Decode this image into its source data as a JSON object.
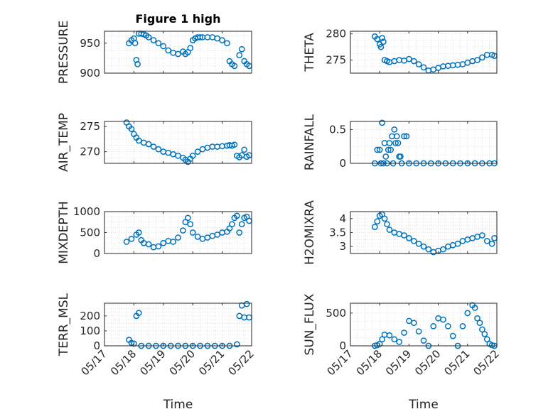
{
  "figure": {
    "title": "Figure 1 high",
    "marker_color": "#0072BD",
    "axis_color": "#262626",
    "grid_color": "#d9d9d9",
    "date_ticks": [
      "05/17",
      "05/18",
      "05/19",
      "05/20",
      "05/21",
      "05/22"
    ],
    "xlabel": "Time"
  },
  "chart_data": [
    {
      "id": "pressure",
      "type": "scatter",
      "ylabel": "PRESSURE",
      "title": "Figure 1 high",
      "xlim": [
        "05/17",
        "05/22"
      ],
      "ylim": [
        900,
        970
      ],
      "yticks": [
        "900",
        "950"
      ],
      "ytick_values": [
        900,
        950
      ],
      "grid": true,
      "x": [
        "05/17 20:00",
        "05/17 22:00",
        "05/18 00:00",
        "05/18 01:00",
        "05/18 02:00",
        "05/18 03:00",
        "05/18 04:00",
        "05/18 06:00",
        "05/18 08:00",
        "05/18 10:00",
        "05/18 12:00",
        "05/18 16:00",
        "05/18 20:00",
        "05/19 00:00",
        "05/19 04:00",
        "05/19 08:00",
        "05/19 12:00",
        "05/19 16:00",
        "05/19 18:00",
        "05/19 20:00",
        "05/19 22:00",
        "05/20 00:00",
        "05/20 02:00",
        "05/20 04:00",
        "05/20 06:00",
        "05/20 08:00",
        "05/20 12:00",
        "05/20 16:00",
        "05/20 20:00",
        "05/21 00:00",
        "05/21 04:00",
        "05/21 06:00",
        "05/21 08:00",
        "05/21 10:00",
        "05/21 14:00",
        "05/21 16:00",
        "05/21 18:00",
        "05/21 20:00",
        "05/21 22:00"
      ],
      "y": [
        950,
        955,
        958,
        950,
        922,
        915,
        966,
        966,
        965,
        963,
        960,
        955,
        950,
        945,
        938,
        934,
        932,
        936,
        932,
        935,
        942,
        955,
        958,
        960,
        960,
        960,
        960,
        960,
        958,
        955,
        950,
        920,
        915,
        912,
        930,
        940,
        920,
        915,
        912
      ]
    },
    {
      "id": "theta",
      "type": "scatter",
      "ylabel": "THETA",
      "xlim": [
        "05/17",
        "05/22"
      ],
      "ylim": [
        272.5,
        280.5
      ],
      "yticks": [
        "275",
        "280"
      ],
      "ytick_values": [
        275,
        280
      ],
      "grid": true,
      "x": [
        "05/17 20:00",
        "05/17 22:00",
        "05/18 00:00",
        "05/18 01:00",
        "05/18 02:00",
        "05/18 03:00",
        "05/18 04:00",
        "05/18 06:00",
        "05/18 08:00",
        "05/18 12:00",
        "05/18 16:00",
        "05/18 20:00",
        "05/19 00:00",
        "05/19 04:00",
        "05/19 08:00",
        "05/19 12:00",
        "05/19 16:00",
        "05/19 20:00",
        "05/20 00:00",
        "05/20 04:00",
        "05/20 08:00",
        "05/20 12:00",
        "05/20 16:00",
        "05/20 20:00",
        "05/21 00:00",
        "05/21 04:00",
        "05/21 08:00",
        "05/21 12:00",
        "05/21 16:00",
        "05/21 20:00",
        "05/21 22:00"
      ],
      "y": [
        279.5,
        279,
        278,
        277.5,
        279.2,
        278.5,
        275,
        274.8,
        274.6,
        274.8,
        275,
        274.9,
        275.2,
        274.8,
        274.2,
        273.6,
        273,
        273.2,
        273.5,
        273.8,
        273.9,
        274,
        274.1,
        274.2,
        274.5,
        274.8,
        275,
        275.5,
        276,
        276,
        275.8
      ]
    },
    {
      "id": "air_temp",
      "type": "scatter",
      "ylabel": "AIR_TEMP",
      "xlim": [
        "05/17",
        "05/22"
      ],
      "ylim": [
        267.7,
        276
      ],
      "yticks": [
        "270",
        "275"
      ],
      "ytick_values": [
        270,
        275
      ],
      "grid": true,
      "x": [
        "05/17 18:00",
        "05/17 20:00",
        "05/17 22:00",
        "05/18 00:00",
        "05/18 02:00",
        "05/18 04:00",
        "05/18 08:00",
        "05/18 12:00",
        "05/18 16:00",
        "05/18 20:00",
        "05/19 00:00",
        "05/19 04:00",
        "05/19 08:00",
        "05/19 12:00",
        "05/19 16:00",
        "05/19 18:00",
        "05/19 20:00",
        "05/19 22:00",
        "05/20 00:00",
        "05/20 04:00",
        "05/20 08:00",
        "05/20 12:00",
        "05/20 16:00",
        "05/20 20:00",
        "05/21 00:00",
        "05/21 04:00",
        "05/21 06:00",
        "05/21 08:00",
        "05/21 10:00",
        "05/21 12:00",
        "05/21 14:00",
        "05/21 16:00",
        "05/21 18:00",
        "05/21 20:00",
        "05/21 22:00"
      ],
      "y": [
        275.8,
        275,
        274.5,
        273.5,
        272.8,
        272.2,
        271.8,
        271.5,
        271,
        270.5,
        270,
        269.8,
        269.5,
        269.2,
        268.8,
        268.4,
        268,
        268.6,
        269.2,
        270,
        270.5,
        270.8,
        271,
        271,
        271.1,
        271.2,
        271.3,
        271.2,
        271.4,
        269.2,
        268.9,
        269.3,
        270.4,
        269,
        269.3
      ]
    },
    {
      "id": "rainfall",
      "type": "scatter",
      "ylabel": "RAINFALL",
      "xlim": [
        "05/17",
        "05/22"
      ],
      "ylim": [
        0,
        0.62
      ],
      "yticks": [
        "0",
        "0.5"
      ],
      "ytick_values": [
        0,
        0.5
      ],
      "grid": true,
      "x": [
        "05/17 20:00",
        "05/17 22:00",
        "05/18 00:00",
        "05/18 01:00",
        "05/18 02:00",
        "05/18 03:00",
        "05/18 04:00",
        "05/18 05:00",
        "05/18 06:00",
        "05/18 07:00",
        "05/18 08:00",
        "05/18 09:00",
        "05/18 10:00",
        "05/18 11:00",
        "05/18 12:00",
        "05/18 13:00",
        "05/18 14:00",
        "05/18 15:00",
        "05/18 16:00",
        "05/18 17:00",
        "05/18 18:00",
        "05/18 20:00",
        "05/18 22:00",
        "05/19 00:00",
        "05/19 06:00",
        "05/19 12:00",
        "05/19 18:00",
        "05/20 00:00",
        "05/20 06:00",
        "05/20 12:00",
        "05/20 18:00",
        "05/21 00:00",
        "05/21 06:00",
        "05/21 12:00",
        "05/21 18:00",
        "05/21 22:00"
      ],
      "y": [
        0,
        0.2,
        0.2,
        0,
        0.6,
        0,
        0.3,
        0.1,
        0,
        0.2,
        0.3,
        0.2,
        0.4,
        0,
        0.5,
        0.3,
        0.4,
        0.3,
        0.1,
        0.1,
        0,
        0.4,
        0.4,
        0,
        0,
        0,
        0,
        0,
        0,
        0,
        0,
        0,
        0,
        0,
        0,
        0
      ]
    },
    {
      "id": "mixdepth",
      "type": "scatter",
      "ylabel": "MIXDEPTH",
      "xlim": [
        "05/17",
        "05/22"
      ],
      "ylim": [
        0,
        1000
      ],
      "yticks": [
        "0",
        "500",
        "1000"
      ],
      "ytick_values": [
        0,
        500,
        1000
      ],
      "grid": true,
      "x": [
        "05/17 18:00",
        "05/17 22:00",
        "05/18 02:00",
        "05/18 04:00",
        "05/18 06:00",
        "05/18 08:00",
        "05/18 12:00",
        "05/18 16:00",
        "05/18 20:00",
        "05/19 00:00",
        "05/19 04:00",
        "05/19 08:00",
        "05/19 12:00",
        "05/19 16:00",
        "05/19 18:00",
        "05/19 20:00",
        "05/19 22:00",
        "05/20 00:00",
        "05/20 04:00",
        "05/20 08:00",
        "05/20 12:00",
        "05/20 16:00",
        "05/20 20:00",
        "05/21 00:00",
        "05/21 04:00",
        "05/21 06:00",
        "05/21 08:00",
        "05/21 10:00",
        "05/21 12:00",
        "05/21 14:00",
        "05/21 16:00",
        "05/21 18:00",
        "05/21 20:00",
        "05/21 22:00"
      ],
      "y": [
        280,
        350,
        450,
        500,
        320,
        250,
        220,
        150,
        170,
        250,
        300,
        280,
        380,
        550,
        750,
        850,
        700,
        500,
        400,
        350,
        380,
        420,
        450,
        500,
        520,
        600,
        700,
        850,
        900,
        500,
        700,
        850,
        880,
        780
      ]
    },
    {
      "id": "h2omixra",
      "type": "scatter",
      "ylabel": "H2OMIXRA",
      "xlim": [
        "05/17",
        "05/22"
      ],
      "ylim": [
        2.75,
        4.25
      ],
      "yticks": [
        "3",
        "3.5",
        "4"
      ],
      "ytick_values": [
        3,
        3.5,
        4
      ],
      "grid": true,
      "x": [
        "05/17 20:00",
        "05/17 22:00",
        "05/18 00:00",
        "05/18 02:00",
        "05/18 04:00",
        "05/18 06:00",
        "05/18 08:00",
        "05/18 12:00",
        "05/18 16:00",
        "05/18 20:00",
        "05/19 00:00",
        "05/19 04:00",
        "05/19 08:00",
        "05/19 12:00",
        "05/19 16:00",
        "05/19 20:00",
        "05/20 00:00",
        "05/20 04:00",
        "05/20 08:00",
        "05/20 12:00",
        "05/20 16:00",
        "05/20 20:00",
        "05/21 00:00",
        "05/21 04:00",
        "05/21 08:00",
        "05/21 12:00",
        "05/21 16:00",
        "05/21 20:00",
        "05/21 22:00"
      ],
      "y": [
        3.7,
        3.9,
        4.1,
        4.15,
        4.0,
        3.8,
        3.6,
        3.5,
        3.45,
        3.4,
        3.3,
        3.2,
        3.1,
        3.0,
        2.9,
        2.8,
        2.85,
        2.9,
        3.0,
        3.05,
        3.1,
        3.2,
        3.25,
        3.3,
        3.35,
        3.4,
        3.2,
        3.1,
        3.3
      ]
    },
    {
      "id": "terr_msl",
      "type": "scatter",
      "ylabel": "TERR_MSL",
      "xlim": [
        "05/17",
        "05/22"
      ],
      "ylim": [
        0,
        285
      ],
      "yticks": [
        "0",
        "100",
        "200"
      ],
      "ytick_values": [
        0,
        100,
        200
      ],
      "grid": true,
      "x": [
        "05/17 20:00",
        "05/17 22:00",
        "05/18 00:00",
        "05/18 02:00",
        "05/18 04:00",
        "05/18 06:00",
        "05/18 12:00",
        "05/18 18:00",
        "05/19 00:00",
        "05/19 06:00",
        "05/19 12:00",
        "05/19 18:00",
        "05/20 00:00",
        "05/20 06:00",
        "05/20 12:00",
        "05/20 18:00",
        "05/21 00:00",
        "05/21 06:00",
        "05/21 12:00",
        "05/21 14:00",
        "05/21 16:00",
        "05/21 18:00",
        "05/21 20:00",
        "05/21 22:00"
      ],
      "y": [
        40,
        20,
        15,
        200,
        220,
        0,
        0,
        0,
        0,
        0,
        0,
        0,
        0,
        0,
        0,
        0,
        0,
        0,
        10,
        200,
        270,
        190,
        280,
        190
      ]
    },
    {
      "id": "sun_flux",
      "type": "scatter",
      "ylabel": "SUN_FLUX",
      "xlim": [
        "05/17",
        "05/22"
      ],
      "ylim": [
        0,
        650
      ],
      "yticks": [
        "0",
        "500"
      ],
      "ytick_values": [
        0,
        500
      ],
      "grid": true,
      "x": [
        "05/17 20:00",
        "05/17 22:00",
        "05/18 00:00",
        "05/18 02:00",
        "05/18 04:00",
        "05/18 08:00",
        "05/18 12:00",
        "05/18 16:00",
        "05/18 20:00",
        "05/19 00:00",
        "05/19 04:00",
        "05/19 08:00",
        "05/19 12:00",
        "05/19 16:00",
        "05/19 20:00",
        "05/20 00:00",
        "05/20 04:00",
        "05/20 08:00",
        "05/20 12:00",
        "05/20 16:00",
        "05/20 20:00",
        "05/21 00:00",
        "05/21 04:00",
        "05/21 06:00",
        "05/21 08:00",
        "05/21 10:00",
        "05/21 12:00",
        "05/21 14:00",
        "05/21 16:00",
        "05/21 18:00",
        "05/21 20:00",
        "05/21 22:00"
      ],
      "y": [
        0,
        10,
        30,
        100,
        170,
        160,
        100,
        60,
        200,
        380,
        350,
        220,
        80,
        0,
        300,
        420,
        400,
        300,
        150,
        0,
        300,
        500,
        620,
        580,
        420,
        350,
        250,
        180,
        100,
        30,
        10,
        0
      ]
    }
  ]
}
